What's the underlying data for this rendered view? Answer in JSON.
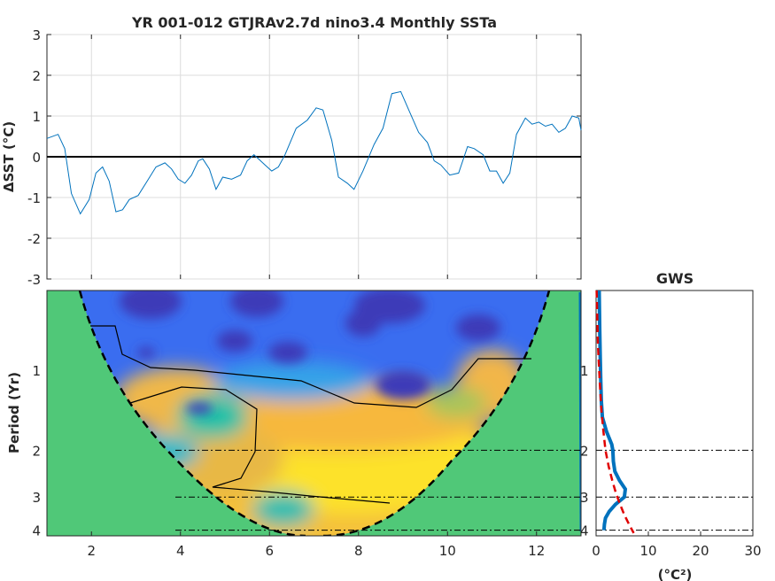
{
  "chart_data": [
    {
      "type": "line",
      "title": "YR 001-012 GTJRAv2.7d nino3.4 Monthly SSTa",
      "ylabel": "ΔSST (°C)",
      "xlabel": "",
      "xlim": [
        1,
        13
      ],
      "ylim": [
        -3,
        3
      ],
      "yticks": [
        "-3",
        "-2",
        "-1",
        "0",
        "1",
        "2",
        "3"
      ],
      "xticks": [
        2,
        4,
        6,
        8,
        10,
        12
      ],
      "grid": true,
      "zero_line": true,
      "series": [
        {
          "color": "#0072BD",
          "x": [
            1.0,
            1.25,
            1.4,
            1.55,
            1.75,
            1.95,
            2.1,
            2.25,
            2.4,
            2.55,
            2.7,
            2.85,
            3.05,
            3.25,
            3.45,
            3.65,
            3.8,
            3.95,
            4.1,
            4.25,
            4.4,
            4.5,
            4.65,
            4.8,
            4.95,
            5.15,
            5.35,
            5.5,
            5.65,
            5.75,
            5.9,
            6.05,
            6.2,
            6.35,
            6.6,
            6.85,
            7.05,
            7.2,
            7.4,
            7.55,
            7.75,
            7.9,
            8.1,
            8.35,
            8.55,
            8.75,
            8.95,
            9.15,
            9.35,
            9.55,
            9.7,
            9.85,
            10.05,
            10.25,
            10.45,
            10.6,
            10.8,
            10.95,
            11.1,
            11.25,
            11.4,
            11.55,
            11.75,
            11.9,
            12.05,
            12.2,
            12.35,
            12.5,
            12.65,
            12.8,
            12.95,
            13.0
          ],
          "y": [
            0.45,
            0.55,
            0.2,
            -0.9,
            -1.4,
            -1.05,
            -0.4,
            -0.25,
            -0.6,
            -1.35,
            -1.3,
            -1.05,
            -0.95,
            -0.6,
            -0.25,
            -0.15,
            -0.3,
            -0.55,
            -0.65,
            -0.45,
            -0.1,
            -0.05,
            -0.3,
            -0.8,
            -0.5,
            -0.55,
            -0.45,
            -0.1,
            0.05,
            -0.05,
            -0.2,
            -0.35,
            -0.25,
            0.05,
            0.7,
            0.9,
            1.2,
            1.15,
            0.4,
            -0.5,
            -0.65,
            -0.8,
            -0.35,
            0.3,
            0.7,
            1.55,
            1.6,
            1.1,
            0.6,
            0.35,
            -0.1,
            -0.2,
            -0.45,
            -0.4,
            0.25,
            0.2,
            0.05,
            -0.35,
            -0.35,
            -0.65,
            -0.4,
            0.55,
            0.95,
            0.8,
            0.85,
            0.75,
            0.8,
            0.6,
            0.7,
            1.0,
            0.95,
            0.65
          ]
        }
      ]
    },
    {
      "type": "heatmap",
      "ylabel": "Period (Yr)",
      "xlim": [
        1,
        13
      ],
      "xticks": [
        2,
        4,
        6,
        8,
        10,
        12
      ],
      "yticks": [
        "1",
        "2",
        "3",
        "4"
      ],
      "reference_periods": [
        2,
        3,
        4
      ],
      "colormap": "parula",
      "cone_of_influence": true
    },
    {
      "type": "line",
      "title": "GWS",
      "xlabel": "(°C²)",
      "xlim": [
        0,
        30
      ],
      "xticks": [
        "0",
        "10",
        "20",
        "30"
      ],
      "yticks": [
        "1",
        "2",
        "3",
        "4"
      ],
      "reference_periods": [
        2,
        3,
        4
      ],
      "series": [
        {
          "style": "solid",
          "color": "#0072BD",
          "period": [
            0.5,
            0.7,
            0.9,
            1.1,
            1.3,
            1.5,
            1.7,
            1.9,
            2.0,
            2.2,
            2.4,
            2.6,
            2.8,
            3.0,
            3.2,
            3.4,
            3.6,
            3.8,
            4.0
          ],
          "power": [
            0.6,
            0.7,
            0.8,
            0.9,
            1.0,
            1.2,
            2.0,
            3.0,
            3.2,
            3.3,
            3.6,
            4.5,
            5.6,
            5.4,
            3.7,
            2.5,
            1.8,
            1.6,
            1.5
          ]
        },
        {
          "style": "dashed",
          "color": "#E00000",
          "period": [
            0.5,
            0.8,
            1.1,
            1.4,
            1.7,
            2.0,
            2.3,
            2.6,
            2.9,
            3.2,
            3.5,
            3.8,
            4.1
          ],
          "power": [
            0.1,
            0.35,
            0.7,
            1.0,
            1.4,
            1.8,
            2.4,
            3.1,
            3.8,
            4.6,
            5.4,
            6.3,
            7.2
          ]
        }
      ]
    }
  ]
}
